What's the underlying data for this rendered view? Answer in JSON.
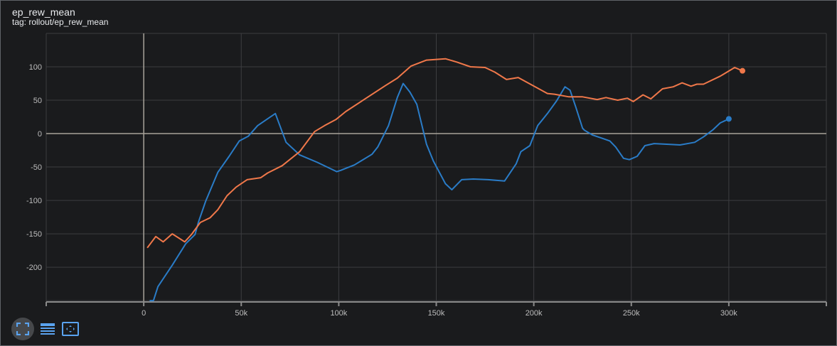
{
  "card": {
    "title": "ep_rew_mean",
    "tag": "tag: rollout/ep_rew_mean"
  },
  "toolbar": {
    "icons": [
      "fit-to-data-icon",
      "toggle-log-scale-icon",
      "reset-zoom-icon"
    ]
  },
  "chart_data": {
    "type": "line",
    "title": "ep_rew_mean",
    "xlabel": "",
    "ylabel": "",
    "xlim": [
      -50000,
      350000
    ],
    "ylim": [
      -252,
      150
    ],
    "grid": true,
    "x_ticks": [
      0,
      50000,
      100000,
      150000,
      200000,
      250000,
      300000
    ],
    "x_tick_labels": [
      "0",
      "50k",
      "100k",
      "150k",
      "200k",
      "250k",
      "300k"
    ],
    "y_ticks": [
      -200,
      -150,
      -100,
      -50,
      0,
      50,
      100
    ],
    "y_tick_labels": [
      "-200",
      "-150",
      "-100",
      "-50",
      "0",
      "50",
      "100"
    ],
    "series": [
      {
        "color": "#1f77b4",
        "stroke": "#2a7cc7",
        "x": [
          3000,
          5000,
          7300,
          14600,
          21500,
          26300,
          28000,
          31800,
          38000,
          43800,
          49000,
          53600,
          58400,
          67500,
          73000,
          80000,
          89000,
          99000,
          101000,
          103600,
          108000,
          117000,
          120000,
          125500,
          130000,
          133000,
          136500,
          140000,
          145000,
          148500,
          154700,
          158000,
          163000,
          169000,
          176600,
          185000,
          191000,
          193400,
          198000,
          202000,
          207000,
          211700,
          216000,
          218600,
          221500,
          225000,
          226000,
          230000,
          235000,
          239000,
          242000,
          246000,
          249000,
          253000,
          257000,
          261700,
          269000,
          275000,
          282500,
          287000,
          292000,
          295600,
          300000
        ],
        "y": [
          -250,
          -250,
          -229,
          -197,
          -165,
          -151,
          -133,
          -101,
          -58,
          -34,
          -11,
          -4,
          12,
          30,
          -13,
          -32,
          -43,
          -57,
          -55,
          -52,
          -47,
          -31,
          -20,
          12,
          54,
          75,
          62,
          44,
          -16,
          -41,
          -75,
          -84,
          -69,
          -68,
          -69,
          -71,
          -45,
          -27,
          -18,
          12,
          30,
          49,
          70,
          65,
          40,
          8,
          5,
          -2,
          -7,
          -11,
          -20,
          -37,
          -39,
          -34,
          -18,
          -15,
          -16,
          -17,
          -13,
          -5,
          6,
          16,
          22
        ]
      },
      {
        "color": "#ff7043",
        "stroke": "#f0784a",
        "x": [
          1800,
          6200,
          10000,
          14600,
          21000,
          24500,
          29000,
          34000,
          38000,
          42700,
          47400,
          53000,
          60000,
          63500,
          71000,
          80000,
          87600,
          92700,
          98500,
          103600,
          113000,
          124000,
          130000,
          137000,
          145000,
          154700,
          160600,
          167500,
          175000,
          180000,
          186000,
          192000,
          197000,
          207000,
          210600,
          218000,
          225000,
          232500,
          237000,
          243000,
          248000,
          251000,
          256000,
          260000,
          266000,
          271500,
          276000,
          280600,
          283600,
          287000,
          295600,
          303000,
          307000
        ],
        "y": [
          -171,
          -154,
          -162,
          -150,
          -162,
          -151,
          -133,
          -126,
          -114,
          -93,
          -80,
          -69,
          -66,
          -59,
          -48,
          -27,
          3,
          12,
          21,
          33,
          51,
          72,
          83,
          101,
          110,
          112,
          107,
          100,
          99,
          92,
          81,
          84,
          76,
          60,
          59,
          55,
          55,
          51,
          54,
          50,
          53,
          48,
          58,
          52,
          67,
          70,
          76,
          71,
          74,
          74,
          86,
          99,
          94
        ]
      }
    ]
  }
}
